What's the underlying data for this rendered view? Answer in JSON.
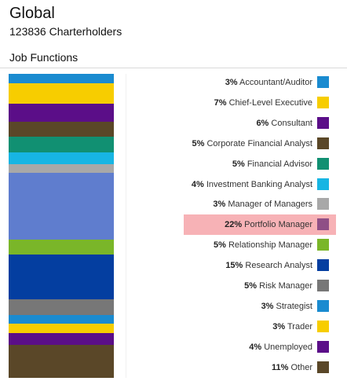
{
  "header": {
    "title": "Global",
    "subtitle": "123836 Charterholders",
    "section": "Job Functions"
  },
  "chart_data": {
    "type": "bar",
    "stacked": true,
    "title": "Job Functions",
    "unit": "%",
    "highlighted": "Portfolio Manager",
    "segments": [
      {
        "label": "Accountant/Auditor",
        "pct_label": "3%",
        "value": 3,
        "color": "#1a8bd0"
      },
      {
        "label": "Chief-Level Executive",
        "pct_label": "7%",
        "value": 7,
        "color": "#f7cd00"
      },
      {
        "label": "Consultant",
        "pct_label": "6%",
        "value": 6,
        "color": "#5b0e88"
      },
      {
        "label": "Corporate Financial Analyst",
        "pct_label": "5%",
        "value": 5,
        "color": "#5a4728"
      },
      {
        "label": "Financial Advisor",
        "pct_label": "5%",
        "value": 5,
        "color": "#119072"
      },
      {
        "label": "Investment Banking Analyst",
        "pct_label": "4%",
        "value": 4,
        "color": "#17b5e3"
      },
      {
        "label": "Manager of Managers",
        "pct_label": "3%",
        "value": 3,
        "color": "#a8a8a8"
      },
      {
        "label": "Portfolio Manager",
        "pct_label": "22%",
        "value": 22,
        "color": "#5f7dce"
      },
      {
        "label": "Relationship Manager",
        "pct_label": "5%",
        "value": 5,
        "color": "#7ab629"
      },
      {
        "label": "Research Analyst",
        "pct_label": "15%",
        "value": 15,
        "color": "#043ea0"
      },
      {
        "label": "Risk Manager",
        "pct_label": "5%",
        "value": 5,
        "color": "#777777"
      },
      {
        "label": "Strategist",
        "pct_label": "3%",
        "value": 3,
        "color": "#1a8bd0"
      },
      {
        "label": "Trader",
        "pct_label": "3%",
        "value": 3,
        "color": "#f7cd00"
      },
      {
        "label": "Unemployed",
        "pct_label": "4%",
        "value": 4,
        "color": "#5b0e88"
      },
      {
        "label": "Other",
        "pct_label": "11%",
        "value": 11,
        "color": "#5a4728"
      }
    ],
    "highlight_swatch_color": "#8f4f86",
    "highlight_row_color": "#f7b2b6"
  }
}
